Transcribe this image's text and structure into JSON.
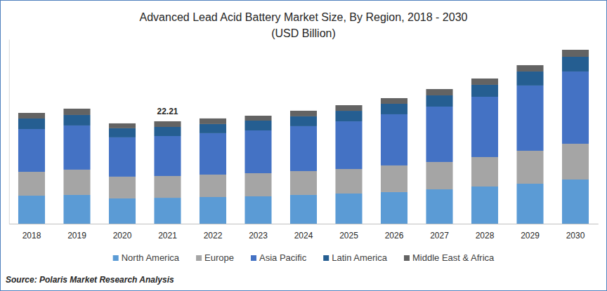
{
  "chart_data": {
    "type": "bar",
    "title": "Advanced Lead Acid Battery Market Size, By Region, 2018 - 2030",
    "subtitle": "(USD Billion)",
    "source": "Source: Polaris Market Research Analysis",
    "categories": [
      "2018",
      "2019",
      "2020",
      "2021",
      "2022",
      "2023",
      "2024",
      "2025",
      "2026",
      "2027",
      "2028",
      "2029",
      "2030"
    ],
    "series": [
      {
        "name": "North America",
        "color": "#5b9bd5",
        "values": [
          6.08,
          6.24,
          5.48,
          5.62,
          5.78,
          5.93,
          6.24,
          6.54,
          6.85,
          7.45,
          8.06,
          8.67,
          9.58
        ]
      },
      {
        "name": "Europe",
        "color": "#a5a5a5",
        "values": [
          5.17,
          5.48,
          4.72,
          4.72,
          4.87,
          5.02,
          5.17,
          5.32,
          5.78,
          5.93,
          6.39,
          7.15,
          7.76
        ]
      },
      {
        "name": "Asia Pacific",
        "color": "#4472c4",
        "values": [
          9.28,
          9.58,
          8.52,
          8.67,
          8.98,
          9.28,
          9.74,
          10.34,
          11.1,
          12.02,
          13.08,
          14.15,
          15.67
        ]
      },
      {
        "name": "Latin America",
        "color": "#255e91",
        "values": [
          2.28,
          2.28,
          1.98,
          1.98,
          1.98,
          2.13,
          2.13,
          2.28,
          2.28,
          2.43,
          2.59,
          3.04,
          3.19
        ]
      },
      {
        "name": "Middle East & Africa",
        "color": "#636363",
        "values": [
          1.22,
          1.37,
          1.06,
          1.22,
          1.22,
          1.06,
          1.22,
          1.22,
          1.22,
          1.37,
          1.37,
          1.37,
          1.52
        ]
      }
    ],
    "annotations": [
      {
        "x": "2021",
        "y": 22.21,
        "text": "22.21"
      }
    ],
    "ylim": [
      0,
      40
    ],
    "stacked": true,
    "grid": false,
    "legend": "bottom",
    "tick_labels": "x"
  }
}
